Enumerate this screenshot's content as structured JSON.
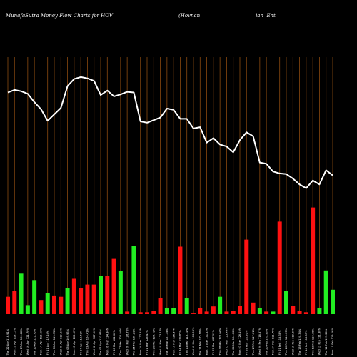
{
  "chart_data": {
    "type": "bar",
    "title": "MunafaSutra  Money Flow  Charts for HOV",
    "subtitle": "(Hovnan                                   ian  Ent",
    "colors": {
      "background": "#000000",
      "grid": "#8a4a10",
      "up": "#22ee22",
      "down": "#ff1111",
      "line": "#ffffff"
    },
    "grid": true,
    "categories": [
      "Tue 22 Apr 116.91%",
      "Mon 21 Apr 119.11%",
      "Thu 17 Apr 120.82%",
      "Wed 16 Apr 121.70%",
      "Tue 15 Apr 122.75%",
      "Mon 14 Apr 118.67%",
      "Fri 11 Apr 117.24%",
      "Thu 10 Apr 113.95%",
      "Wed 09 Apr 119.51%",
      "Tue 08 Apr 109.93%",
      "Mon 07 Apr 108.33%",
      "Fri 04 Apr 115.73%",
      "Thu 03 Apr 124.41%",
      "Wed 02 Apr 127.06%",
      "Tue 01 Apr 123.85%",
      "Mon 31 Mar 124.30%",
      "Fri 28 Mar 121.68%",
      "Thu 27 Mar 122.94%",
      "Wed 26 Mar 126.76%",
      "Tue 25 Mar 125.21%",
      "Mon 24 Mar 127.93%",
      "Fri 21 Mar 125.43%",
      "Thu 20 Mar 124.42%",
      "Wed 19 Mar 123.17%",
      "Tue 18 Mar 121.35%",
      "Mon 17 Mar 126.67%",
      "Fri 14 Mar 123.65%",
      "Thu 13 Mar 119.31%",
      "Wed 12 Mar 116.98%",
      "Tue 11 Mar 125.66%",
      "Mon 10 Mar 131.62%",
      "Fri 07 Mar 127.99%",
      "Thu 06 Mar 126.64%",
      "Wed 05 Mar 125.49%",
      "Tue 04 Mar 124.06%",
      "Mon 03 Mar 126.19%",
      "Fri 28 Feb 122.82%",
      "Thu 27 Feb 117.01%",
      "Wed 26 Feb 116.57%",
      "Tue 25 Feb 109.90%",
      "Mon 24 Feb 111.76%",
      "Fri 21 Feb 115.38%",
      "Thu 20 Feb 116.63%",
      "Wed 19 Feb 118.88%",
      "Tue 18 Feb 120.34%",
      "Fri 14 Feb 118.55%",
      "Thu 13 Feb 119.78%",
      "Wed 12 Feb 121.88%",
      "Tue 11 Feb 129.20%",
      "Mon 10 Feb 119.06%"
    ],
    "series": [
      {
        "values": [
          27,
          36,
          63,
          14,
          53,
          22,
          33,
          29,
          27,
          41,
          55,
          40,
          46,
          46,
          59,
          60,
          86,
          67,
          4,
          106,
          3,
          3,
          5,
          25,
          10,
          10,
          105,
          25,
          1,
          10,
          4,
          12,
          27,
          4,
          5,
          13,
          116,
          18,
          10,
          4,
          4,
          144,
          36,
          13,
          5,
          3,
          166,
          9,
          68,
          38
        ],
        "colors": [
          "red",
          "red",
          "green",
          "green",
          "green",
          "red",
          "green",
          "red",
          "red",
          "green",
          "red",
          "red",
          "red",
          "red",
          "green",
          "red",
          "red",
          "green",
          "red",
          "green",
          "red",
          "red",
          "red",
          "red",
          "green",
          "green",
          "red",
          "green",
          "red",
          "red",
          "red",
          "red",
          "green",
          "red",
          "red",
          "red",
          "red",
          "red",
          "green",
          "red",
          "green",
          "red",
          "green",
          "red",
          "red",
          "red",
          "red",
          "green",
          "green",
          "green"
        ]
      },
      {
        "values": [
          345,
          349,
          347,
          343,
          330,
          319,
          301,
          311,
          321,
          355,
          366,
          369,
          367,
          363,
          341,
          348,
          339,
          342,
          346,
          345,
          300,
          298,
          302,
          306,
          320,
          318,
          304,
          304,
          289,
          291,
          267,
          274,
          264,
          261,
          252,
          271,
          283,
          277,
          236,
          234,
          222,
          219,
          218,
          211,
          202,
          196,
          208,
          202,
          224,
          216
        ]
      }
    ],
    "ylim": [
      0,
      400
    ]
  }
}
